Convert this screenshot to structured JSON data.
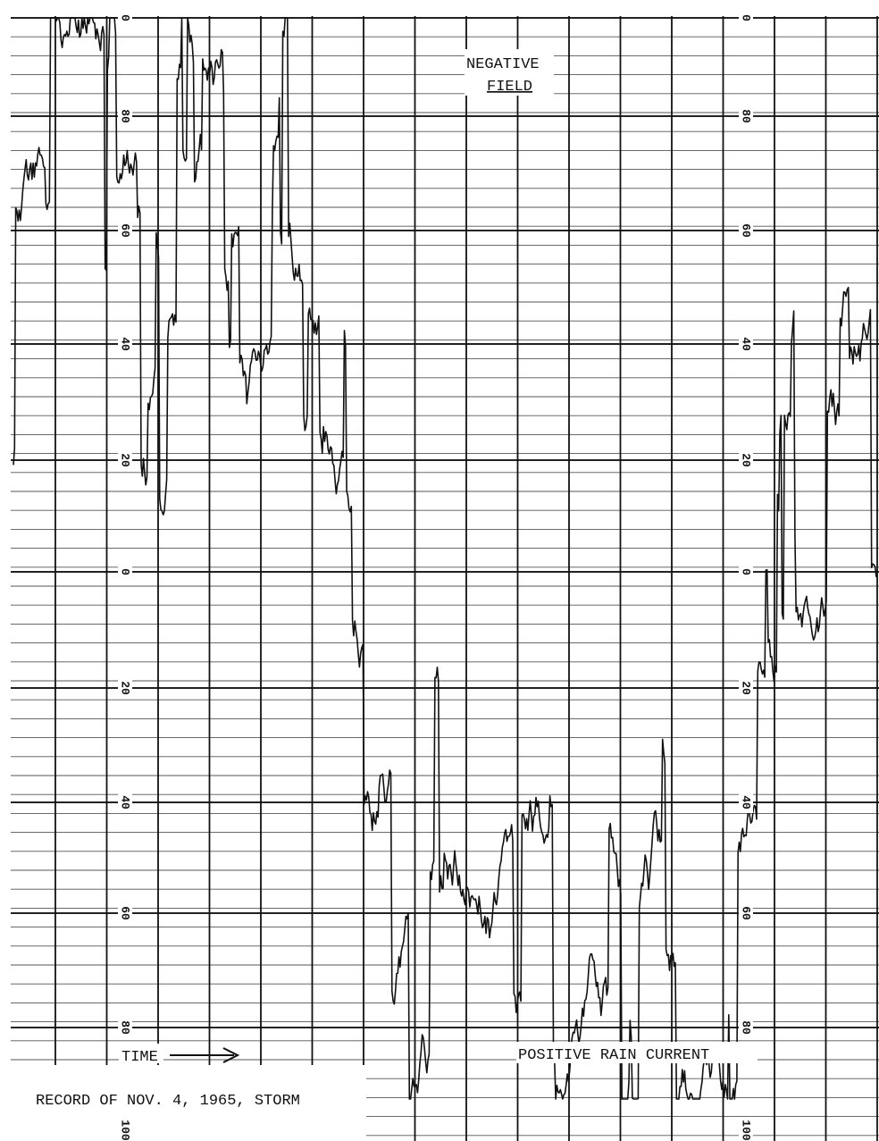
{
  "annotations": {
    "negative_field": [
      "NEGATIVE",
      "FIELD"
    ],
    "positive_rain_current": "POSITIVE RAIN CURRENT",
    "time": "TIME"
  },
  "caption": "RECORD OF NOV. 4, 1965, STORM",
  "scale_labels": [
    0,
    80,
    60,
    40,
    20,
    0,
    20,
    40,
    60,
    80,
    100
  ]
}
